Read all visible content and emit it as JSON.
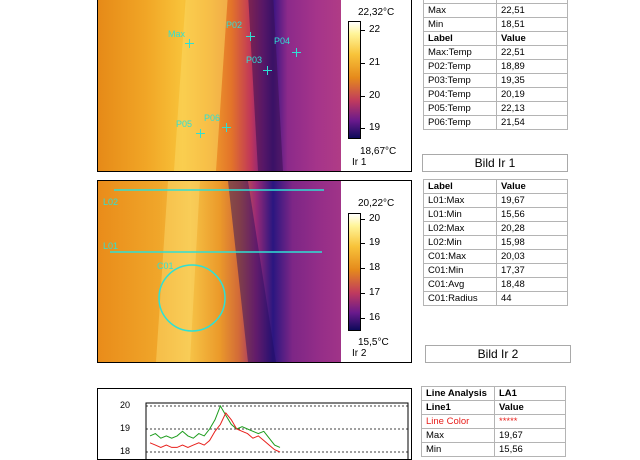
{
  "image1": {
    "scale_top": "22,32°C",
    "scale_bottom": "18,67°C",
    "name": "Ir 1",
    "ticks": [
      "22",
      "21",
      "20",
      "19"
    ],
    "markers": [
      "Max",
      "P02",
      "P03",
      "P04",
      "P05",
      "P06"
    ],
    "caption": "Bild Ir 1"
  },
  "table1": {
    "top_rows": [
      [
        "Max",
        "22,51"
      ],
      [
        "Min",
        "18,51"
      ]
    ],
    "header": [
      "Label",
      "Value"
    ],
    "rows": [
      [
        "Max:Temp",
        "22,51"
      ],
      [
        "P02:Temp",
        "18,89"
      ],
      [
        "P03:Temp",
        "19,35"
      ],
      [
        "P04:Temp",
        "20,19"
      ],
      [
        "P05:Temp",
        "22,13"
      ],
      [
        "P06:Temp",
        "21,54"
      ]
    ]
  },
  "image2": {
    "scale_top": "20,22°C",
    "scale_bottom": "15,5°C",
    "name": "Ir 2",
    "ticks": [
      "20",
      "19",
      "18",
      "17",
      "16"
    ],
    "markers": [
      "L02",
      "L01",
      "C01"
    ],
    "caption": "Bild Ir 2"
  },
  "table2": {
    "header": [
      "Label",
      "Value"
    ],
    "rows": [
      [
        "L01:Max",
        "19,67"
      ],
      [
        "L01:Min",
        "15,56"
      ],
      [
        "L02:Max",
        "20,28"
      ],
      [
        "L02:Min",
        "15,98"
      ],
      [
        "C01:Max",
        "20,03"
      ],
      [
        "C01:Min",
        "17,37"
      ],
      [
        "C01:Avg",
        "18,48"
      ],
      [
        "C01:Radius",
        "44"
      ]
    ]
  },
  "table3": {
    "header": [
      "Line Analysis",
      "LA1"
    ],
    "subheader": [
      "Line1",
      "Value"
    ],
    "line_color_label": "Line Color",
    "line_color_value": "*****",
    "rows": [
      [
        "Max",
        "19,67"
      ],
      [
        "Min",
        "15,56"
      ]
    ]
  },
  "chart_data": {
    "type": "line",
    "ylim": [
      17.5,
      20.3
    ],
    "yticks": [
      "20",
      "19",
      "18"
    ],
    "grid": true,
    "colors": {
      "red": "#e8201c",
      "green": "#1c9c1c"
    },
    "series": [
      {
        "values": [
          18.7,
          18.8,
          18.6,
          18.7,
          18.6,
          18.7,
          18.9,
          18.7,
          18.6,
          18.8,
          18.7,
          19.0,
          19.4,
          20.0,
          19.6,
          19.2,
          19.0,
          19.1,
          19.0,
          18.9,
          18.8,
          18.9,
          18.6,
          18.3,
          18.2
        ]
      },
      {
        "values": [
          18.4,
          18.3,
          18.2,
          18.3,
          18.2,
          18.2,
          18.3,
          18.2,
          18.3,
          18.4,
          18.3,
          18.5,
          18.9,
          19.2,
          19.7,
          19.4,
          19.0,
          18.9,
          18.8,
          18.6,
          18.7,
          18.5,
          18.3,
          18.1,
          18.0
        ]
      }
    ]
  }
}
